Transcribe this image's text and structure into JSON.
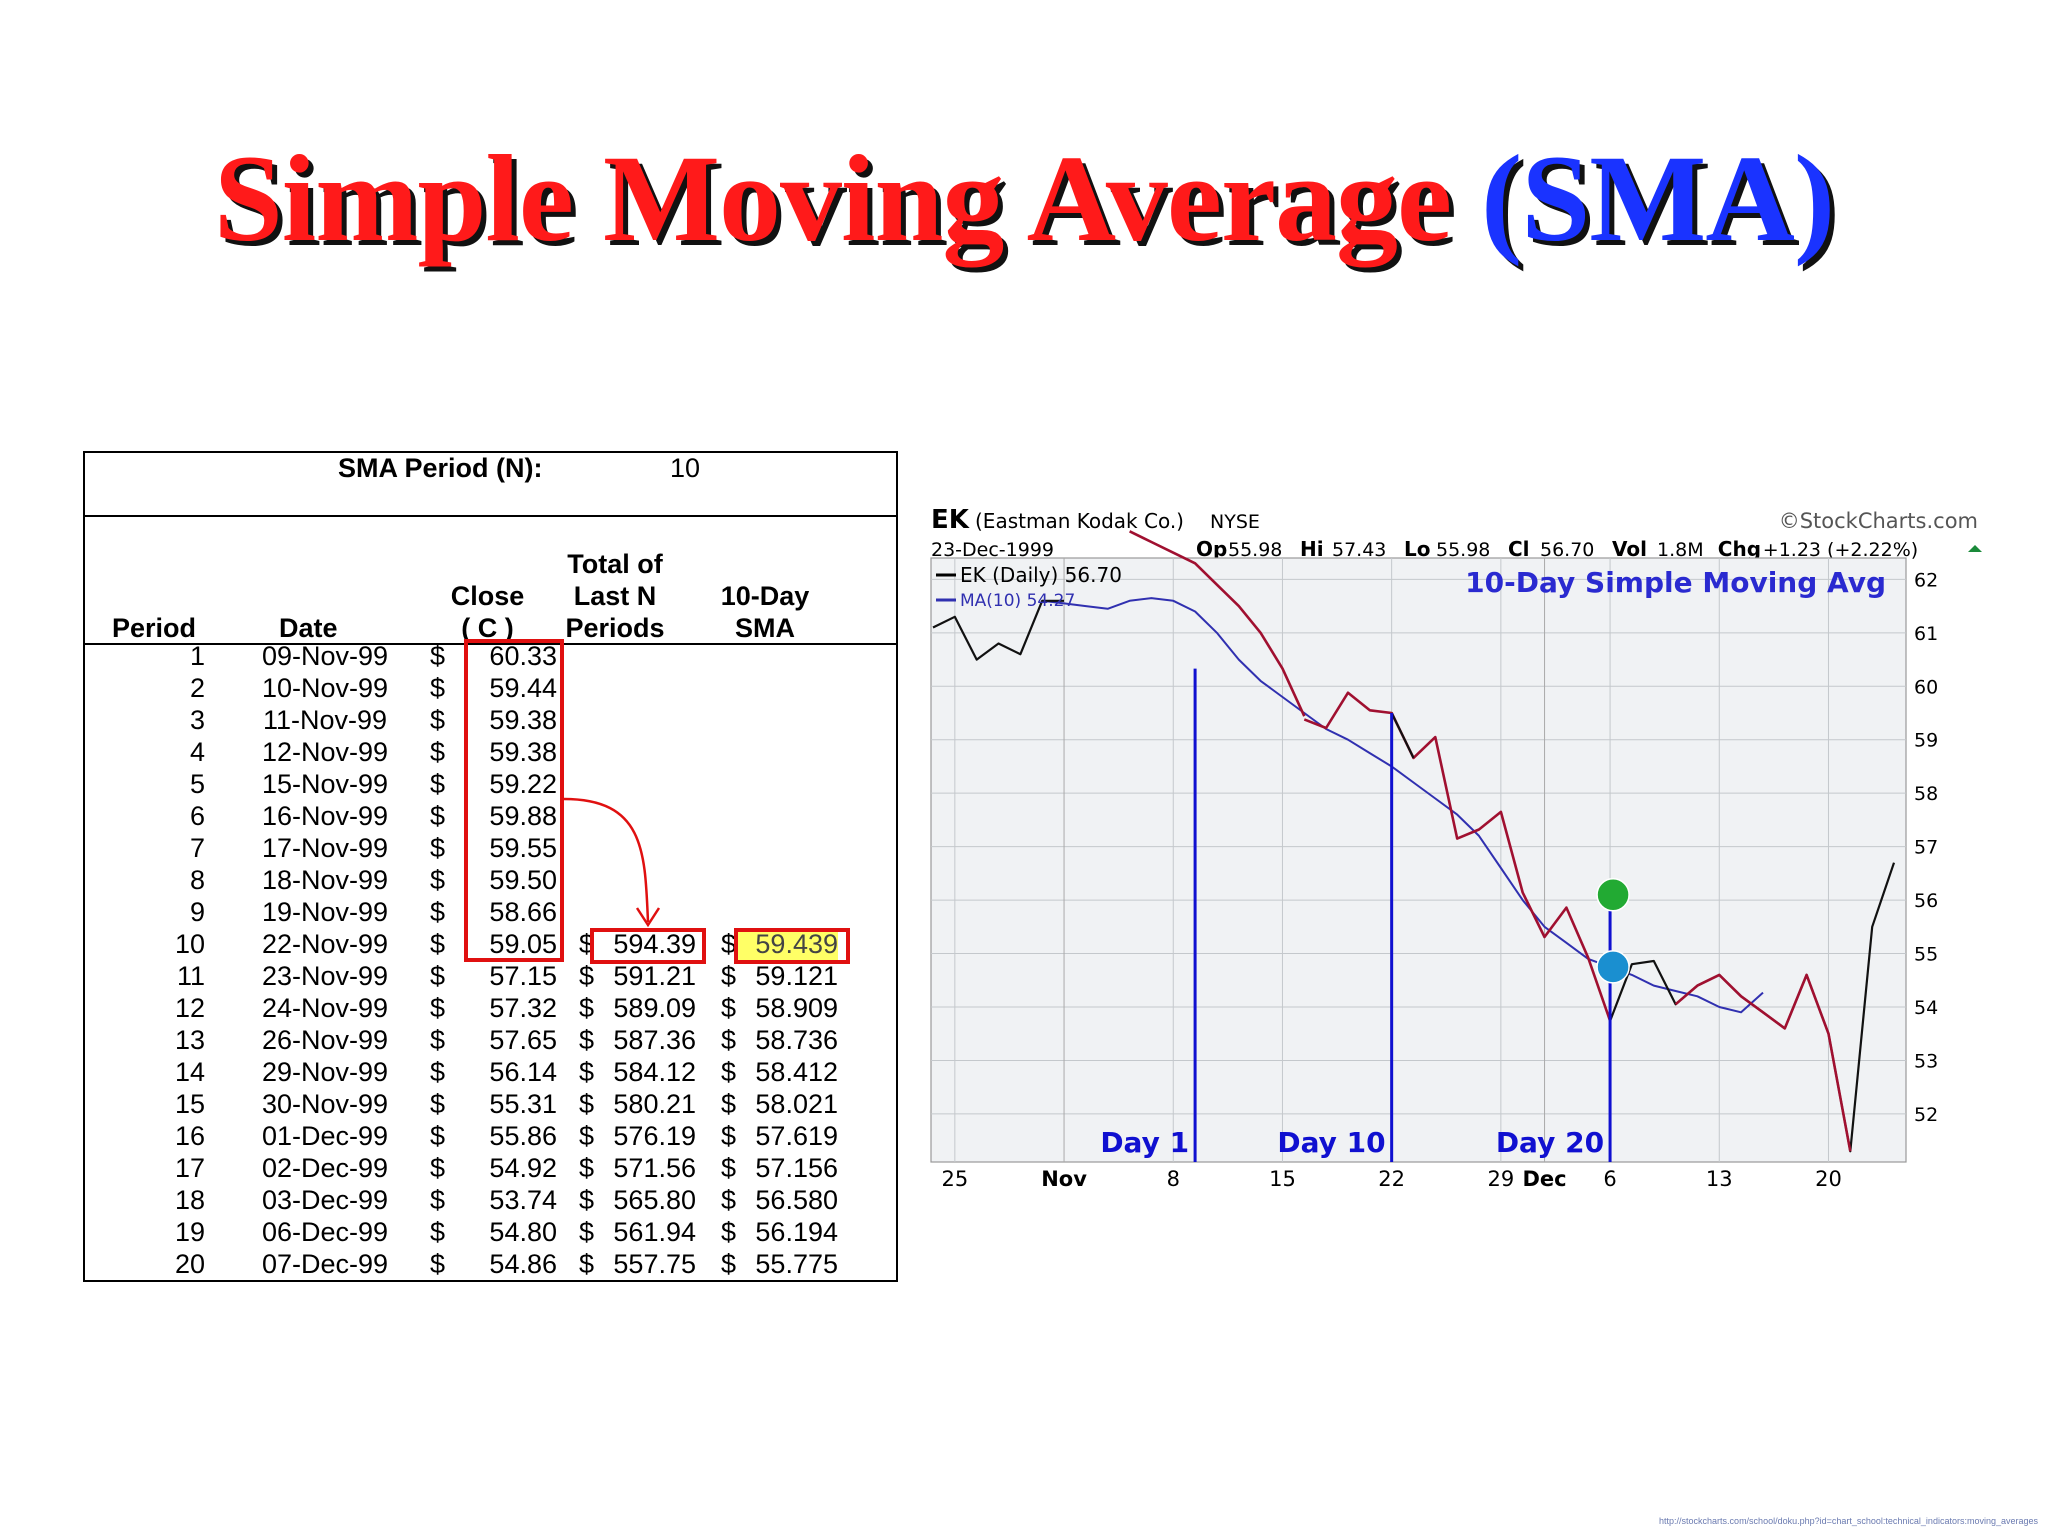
{
  "slide": {
    "title_main": "Simple Moving Average",
    "title_paren": "(SMA)",
    "source_url": "http://stockcharts.com/school/doku.php?id=chart_school:technical_indicators:moving_averages"
  },
  "table": {
    "sma_period_label": "SMA Period (N):",
    "sma_period_value": "10",
    "headers": {
      "period": "Period",
      "date": "Date",
      "close_1": "Close",
      "close_2": "( C )",
      "total_1": "Total of",
      "total_2": "Last N",
      "total_3": "Periods",
      "sma_1": "10-Day",
      "sma_2": "SMA"
    },
    "currency": "$",
    "rows": [
      {
        "period": "1",
        "date": "09-Nov-99",
        "close": "60.33",
        "total": "",
        "sma": ""
      },
      {
        "period": "2",
        "date": "10-Nov-99",
        "close": "59.44",
        "total": "",
        "sma": ""
      },
      {
        "period": "3",
        "date": "11-Nov-99",
        "close": "59.38",
        "total": "",
        "sma": ""
      },
      {
        "period": "4",
        "date": "12-Nov-99",
        "close": "59.38",
        "total": "",
        "sma": ""
      },
      {
        "period": "5",
        "date": "15-Nov-99",
        "close": "59.22",
        "total": "",
        "sma": ""
      },
      {
        "period": "6",
        "date": "16-Nov-99",
        "close": "59.88",
        "total": "",
        "sma": ""
      },
      {
        "period": "7",
        "date": "17-Nov-99",
        "close": "59.55",
        "total": "",
        "sma": ""
      },
      {
        "period": "8",
        "date": "18-Nov-99",
        "close": "59.50",
        "total": "",
        "sma": ""
      },
      {
        "period": "9",
        "date": "19-Nov-99",
        "close": "58.66",
        "total": "",
        "sma": ""
      },
      {
        "period": "10",
        "date": "22-Nov-99",
        "close": "59.05",
        "total": "594.39",
        "sma": "59.439"
      },
      {
        "period": "11",
        "date": "23-Nov-99",
        "close": "57.15",
        "total": "591.21",
        "sma": "59.121"
      },
      {
        "period": "12",
        "date": "24-Nov-99",
        "close": "57.32",
        "total": "589.09",
        "sma": "58.909"
      },
      {
        "period": "13",
        "date": "26-Nov-99",
        "close": "57.65",
        "total": "587.36",
        "sma": "58.736"
      },
      {
        "period": "14",
        "date": "29-Nov-99",
        "close": "56.14",
        "total": "584.12",
        "sma": "58.412"
      },
      {
        "period": "15",
        "date": "30-Nov-99",
        "close": "55.31",
        "total": "580.21",
        "sma": "58.021"
      },
      {
        "period": "16",
        "date": "01-Dec-99",
        "close": "55.86",
        "total": "576.19",
        "sma": "57.619"
      },
      {
        "period": "17",
        "date": "02-Dec-99",
        "close": "54.92",
        "total": "571.56",
        "sma": "57.156"
      },
      {
        "period": "18",
        "date": "03-Dec-99",
        "close": "53.74",
        "total": "565.80",
        "sma": "56.580"
      },
      {
        "period": "19",
        "date": "06-Dec-99",
        "close": "54.80",
        "total": "561.94",
        "sma": "56.194"
      },
      {
        "period": "20",
        "date": "07-Dec-99",
        "close": "54.86",
        "total": "557.75",
        "sma": "55.775"
      }
    ]
  },
  "colors": {
    "title_red": "#ff1a1a",
    "title_blue": "#1a33ff",
    "box_red": "#e01010",
    "highlight_yellow": "#ffff66",
    "price_black": "#111111",
    "price_highlight": "#a01030",
    "ma_blue": "#3030b0",
    "marker_blue": "#1010d0"
  },
  "chart_data": {
    "type": "line",
    "ticker": "EK",
    "company": "(Eastman Kodak Co.)",
    "exchange": "NYSE",
    "brand": "©StockCharts.com",
    "date": "23-Dec-1999",
    "quote": [
      {
        "k": "Op",
        "v": "55.98"
      },
      {
        "k": "Hi",
        "v": "57.43"
      },
      {
        "k": "Lo",
        "v": "55.98"
      },
      {
        "k": "Cl",
        "v": "56.70"
      },
      {
        "k": "Vol",
        "v": "1.8M"
      },
      {
        "k": "Chg",
        "v": "+1.23 (+2.22%)"
      }
    ],
    "legend": [
      "EK (Daily) 56.70",
      "MA(10) 54.27"
    ],
    "chart_title": "10-Day Simple Moving Avg",
    "x_labels": [
      {
        "t": "25",
        "i": 1,
        "bold": false
      },
      {
        "t": "Nov",
        "i": 6,
        "bold": true
      },
      {
        "t": "8",
        "i": 11,
        "bold": false
      },
      {
        "t": "15",
        "i": 16,
        "bold": false
      },
      {
        "t": "22",
        "i": 21,
        "bold": false
      },
      {
        "t": "29",
        "i": 26,
        "bold": false
      },
      {
        "t": "Dec",
        "i": 28,
        "bold": true
      },
      {
        "t": "6",
        "i": 31,
        "bold": false
      },
      {
        "t": "13",
        "i": 36,
        "bold": false
      },
      {
        "t": "20",
        "i": 41,
        "bold": false
      }
    ],
    "y_ticks": [
      52,
      53,
      54,
      55,
      56,
      57,
      58,
      59,
      60,
      61,
      62
    ],
    "ylim": [
      51.1,
      62.4
    ],
    "x_count": 45,
    "price": [
      61.1,
      61.3,
      60.5,
      60.8,
      60.6,
      61.6,
      61.6,
      null,
      null,
      null,
      null,
      null,
      null,
      null,
      null,
      null,
      null,
      59.38,
      59.22,
      59.88,
      59.55,
      59.5,
      58.66,
      59.05,
      57.15,
      57.32,
      57.65,
      56.14,
      55.31,
      55.86,
      54.92,
      53.74,
      54.8,
      54.86,
      54.05,
      54.4,
      54.6,
      54.2,
      53.9,
      53.6,
      54.6,
      53.5,
      51.3,
      55.5,
      56.7
    ],
    "price_highlight_start": 8,
    "price_highlight_end": 34,
    "price_lead": [
      62.9,
      62.7,
      62.5,
      62.3,
      61.9,
      61.5,
      61.0,
      60.33,
      59.44
    ],
    "ma": [
      null,
      null,
      null,
      null,
      null,
      61.6,
      61.55,
      61.5,
      61.45,
      61.6,
      61.65,
      61.6,
      61.4,
      61.0,
      60.5,
      60.1,
      59.8,
      59.5,
      59.2,
      59.0,
      58.75,
      58.5,
      58.2,
      57.9,
      57.6,
      57.2,
      56.6,
      56.0,
      55.5,
      55.2,
      54.9,
      54.75,
      54.6,
      54.4,
      54.3,
      54.2,
      54.0,
      53.9,
      54.27
    ],
    "markers": [
      {
        "label": "Day 1",
        "i": 12,
        "y": 60.33
      },
      {
        "label": "Day 10",
        "i": 21,
        "y": 59.5
      },
      {
        "label": "Day 20",
        "i": 31,
        "y": 56.0
      }
    ],
    "dots": [
      {
        "i": 31,
        "y": 56.1,
        "color": "#22aa33"
      },
      {
        "i": 31,
        "y": 54.75,
        "color": "#1a8fd0"
      }
    ]
  }
}
